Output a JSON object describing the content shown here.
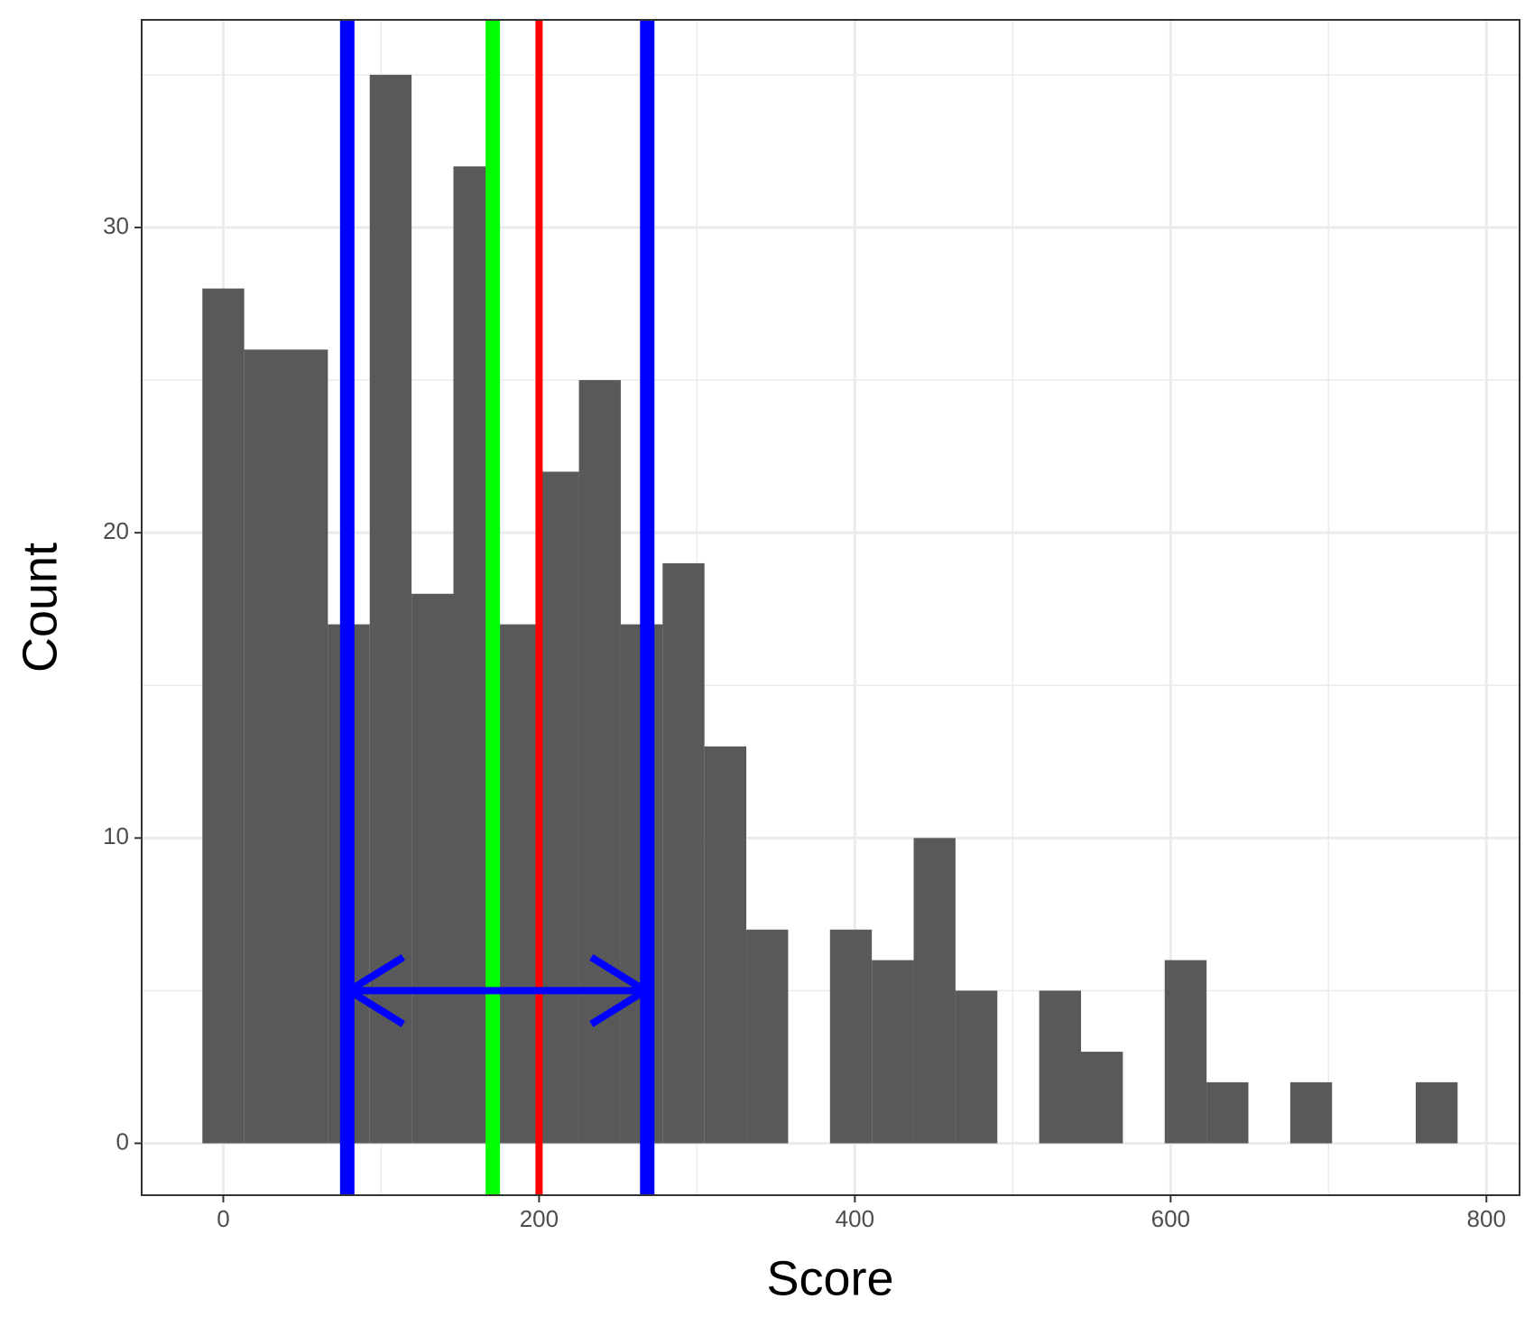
{
  "chart_data": {
    "type": "histogram",
    "x_label": "Score",
    "y_label": "Count",
    "bins": [
      -13.25,
      13.25,
      39.75,
      66.25,
      92.75,
      119.25,
      145.75,
      172.25,
      198.75,
      225.25,
      251.75,
      278.25,
      304.75,
      331.25,
      357.75,
      384.25,
      410.75,
      437.25,
      463.75,
      490.25,
      516.75,
      543.25,
      569.75,
      596.25,
      622.75,
      649.25,
      675.75,
      702.25,
      728.75,
      755.25,
      781.75
    ],
    "values": [
      28,
      26,
      26,
      17,
      35,
      18,
      32,
      17,
      22,
      25,
      17,
      19,
      13,
      7,
      0,
      7,
      6,
      10,
      5,
      0,
      5,
      3,
      0,
      6,
      2,
      0,
      2,
      0,
      0,
      2
    ],
    "color": "#595959",
    "xlim": [
      -51.7,
      821
    ],
    "ylim": [
      -1.7,
      36.8
    ],
    "xticks": [
      0,
      200,
      400,
      600,
      800
    ],
    "yticks": [
      0,
      10,
      20,
      30
    ],
    "x_minor_ticks": [
      100,
      300,
      500,
      700
    ],
    "y_minor_ticks": [
      5,
      15,
      25,
      35
    ],
    "grid": true,
    "vlines": [
      {
        "value": 78.5,
        "color": "#0000ff",
        "linewidth": 16
      },
      {
        "value": 268.5,
        "color": "#0000ff",
        "linewidth": 16
      },
      {
        "value": 170.7,
        "color": "#00ff00",
        "linewidth": 16
      },
      {
        "value": 200,
        "color": "#ff0000",
        "linewidth": 8
      }
    ],
    "arrow": {
      "from": 78.5,
      "to": 268.5,
      "y": 5,
      "color": "#0000ff"
    }
  }
}
